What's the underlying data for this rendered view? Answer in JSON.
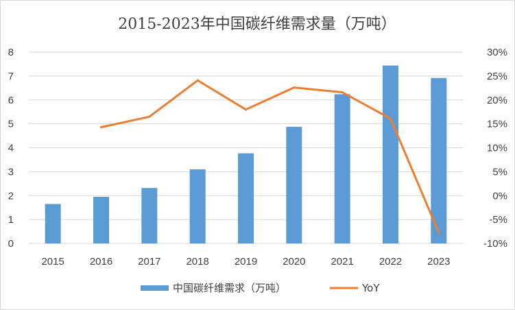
{
  "chart_data": {
    "type": "bar",
    "title": "2015-2023年中国碳纤维需求量（万吨）",
    "categories": [
      "2015",
      "2016",
      "2017",
      "2018",
      "2019",
      "2020",
      "2021",
      "2022",
      "2023"
    ],
    "series": [
      {
        "name": "中国碳纤维需求（万吨）",
        "type": "bar",
        "axis": "left",
        "color": "#5b9bd5",
        "values": [
          1.65,
          1.95,
          2.32,
          3.1,
          3.77,
          4.88,
          6.24,
          7.44,
          6.92
        ]
      },
      {
        "name": "YoY",
        "type": "line",
        "axis": "right",
        "color": "#ed7d31",
        "values": [
          null,
          0.143,
          0.165,
          0.241,
          0.18,
          0.226,
          0.216,
          0.161,
          -0.077
        ]
      }
    ],
    "y_left": {
      "min": 0,
      "max": 8,
      "ticks": [
        "0",
        "1",
        "2",
        "3",
        "4",
        "5",
        "6",
        "7",
        "8"
      ]
    },
    "y_right": {
      "min": -0.1,
      "max": 0.3,
      "ticks": [
        "-10%",
        "-5%",
        "0%",
        "5%",
        "10%",
        "15%",
        "20%",
        "25%",
        "30%"
      ]
    },
    "grid": true,
    "legend_position": "bottom"
  }
}
